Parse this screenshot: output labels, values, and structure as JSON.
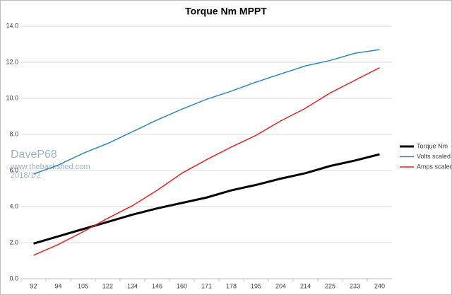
{
  "chart_data": {
    "type": "line",
    "title": "Torque Nm MPPT",
    "categories": [
      92,
      94,
      105,
      122,
      134,
      146,
      160,
      171,
      178,
      195,
      204,
      214,
      225,
      233,
      240
    ],
    "series": [
      {
        "name": "Torque Nm",
        "color": "#000000",
        "values": [
          1.95,
          2.35,
          2.75,
          3.15,
          3.55,
          3.9,
          4.2,
          4.5,
          4.9,
          5.2,
          5.55,
          5.85,
          6.25,
          6.55,
          6.9
        ]
      },
      {
        "name": "Volts scaled",
        "color": "#2e86c1",
        "values": [
          5.8,
          6.3,
          6.95,
          7.5,
          8.15,
          8.8,
          9.4,
          9.95,
          10.4,
          10.9,
          11.35,
          11.8,
          12.1,
          12.5,
          12.7
        ]
      },
      {
        "name": "Amps scaled",
        "color": "#e8231f",
        "values": [
          1.3,
          1.9,
          2.6,
          3.35,
          4.05,
          4.9,
          5.85,
          6.6,
          7.3,
          7.95,
          8.75,
          9.45,
          10.3,
          11.0,
          11.7
        ]
      }
    ],
    "ylim": [
      0,
      14
    ],
    "yticks": [
      {
        "value": 0,
        "label": "0.0"
      },
      {
        "value": 2,
        "label": "2.0"
      },
      {
        "value": 4,
        "label": "4.0"
      },
      {
        "value": 6,
        "label": "6.0"
      },
      {
        "value": 8,
        "label": "8.0"
      },
      {
        "value": 10,
        "label": "10.0"
      },
      {
        "value": 12,
        "label": "12.0"
      },
      {
        "value": 14,
        "label": "14.0"
      }
    ],
    "grid": true,
    "legend": "right",
    "annotations": [
      "DaveP68",
      "www.thebackshed.com",
      "2018/1/2"
    ]
  }
}
